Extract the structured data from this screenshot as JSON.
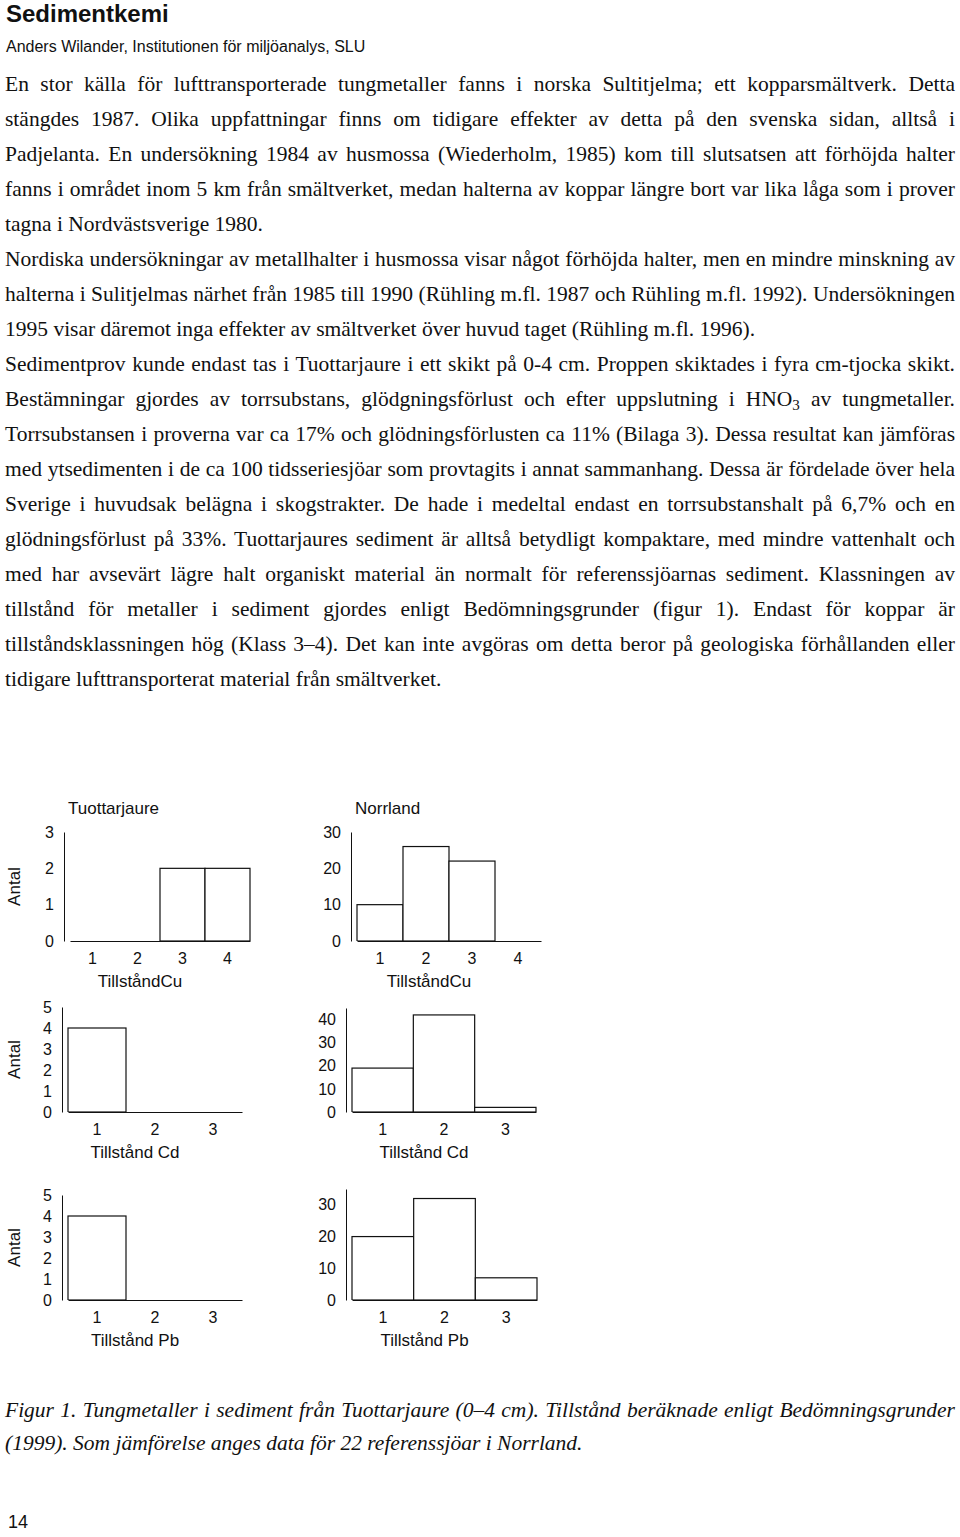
{
  "header": {
    "title": "Sedimentkemi",
    "author": "Anders Wilander, Institutionen för miljöanalys, SLU"
  },
  "paragraphs": [
    {
      "runs": [
        {
          "text": "En stor källa för lufttransporterade tungmetaller fanns i norska Sultitjelma; ett kopparsmältverk. Detta stängdes 1987. Olika uppfattningar finns om tidigare effekter av detta på den svenska sidan, alltså i Padjelanta. En undersökning 1984 av husmossa (Wiederholm, 1985) kom till slutsatsen att förhöjda halter fanns i området inom 5 km från smältverket, medan halterna av koppar längre bort var lika låga som i prover tagna i Nordvästsverige 1980."
        }
      ]
    },
    {
      "runs": [
        {
          "text": "Nordiska undersökningar av metallhalter i husmossa visar något förhöjda halter, men en mindre minskning av halterna i Sulitjelmas närhet från 1985 till 1990 (Rühling m.fl. 1987 och Rühling m.fl. 1992). Undersökningen 1995 visar däremot inga effekter av smältverket över huvud taget (Rühling m.fl. 1996)."
        }
      ]
    },
    {
      "runs": [
        {
          "text": "Sedimentprov kunde endast tas i Tuottarjaure i ett skikt på 0-4 cm. Proppen skiktades i fyra cm-tjocka skikt. Bestämningar gjordes av torrsubstans, glödgningsförlust och efter uppslutning i HNO"
        },
        {
          "text": "3",
          "subscript": true
        },
        {
          "text": " av tungmetaller. Torrsubstansen i proverna var ca 17% och glödningsförlusten ca 11% (Bilaga 3). Dessa resultat kan jämföras med ytsedimenten i de ca 100 tidsseriesjöar som provtagits i annat sammanhang. Dessa är fördelade över hela Sverige i huvudsak belägna i skogstrakter. De hade i medeltal endast en torrsubstanshalt på 6,7% och en glödningsförlust på 33%. Tuottarjaures sediment är alltså betydligt kompaktare, med mindre vattenhalt och med har avsevärt lägre halt organiskt material än normalt för referenssjöarnas sediment. Klassningen av tillstånd för metaller i sediment gjordes enligt Bedömningsgrunder (figur 1). Endast för koppar är tillståndsklassningen hög (Klass 3–4). Det kan inte avgöras om detta beror på geologiska förhållanden eller tidigare lufttransporterat material från smältverket."
        }
      ]
    }
  ],
  "chart_data": [
    {
      "type": "bar",
      "title": "Tuottarjaure",
      "x_label": "TillståndCu",
      "y_label": "Antal",
      "categories": [
        "1",
        "2",
        "3",
        "4"
      ],
      "values": [
        0,
        0,
        2,
        2
      ],
      "color": "#ffffff",
      "ylim": [
        0,
        3
      ],
      "yticks": [
        0,
        1,
        2,
        3
      ]
    },
    {
      "type": "bar",
      "title": "Norrland",
      "x_label": "TillståndCu",
      "categories": [
        "1",
        "2",
        "3",
        "4"
      ],
      "values": [
        10,
        26,
        22,
        0
      ],
      "color": "#ffffff",
      "ylim": [
        0,
        30
      ],
      "yticks": [
        0,
        10,
        20,
        30
      ]
    },
    {
      "type": "bar",
      "x_label": "Tillstånd Cd",
      "y_label": "Antal",
      "categories": [
        "1",
        "2",
        "3"
      ],
      "values": [
        4,
        0,
        0
      ],
      "color": "#ffffff",
      "ylim": [
        0,
        5
      ],
      "yticks": [
        0,
        1,
        2,
        3,
        4,
        5
      ]
    },
    {
      "type": "bar",
      "x_label": "Tillstånd Cd",
      "categories": [
        "1",
        "2",
        "3"
      ],
      "values": [
        19,
        42,
        2
      ],
      "color": "#ffffff",
      "ylim": [
        0,
        45
      ],
      "yticks": [
        0,
        10,
        20,
        30,
        40
      ]
    },
    {
      "type": "bar",
      "x_label": "Tillstånd Pb",
      "y_label": "Antal",
      "categories": [
        "1",
        "2",
        "3"
      ],
      "values": [
        4,
        0,
        0
      ],
      "color": "#ffffff",
      "ylim": [
        0,
        5
      ],
      "yticks": [
        0,
        1,
        2,
        3,
        4,
        5
      ]
    },
    {
      "type": "bar",
      "x_label": "Tillstånd Pb",
      "categories": [
        "1",
        "2",
        "3"
      ],
      "values": [
        20,
        32,
        7
      ],
      "color": "#ffffff",
      "ylim": [
        0,
        35
      ],
      "yticks": [
        0,
        10,
        20,
        30
      ]
    }
  ],
  "caption": "Figur 1. Tungmetaller i sediment från Tuottarjaure (0–4 cm). Tillstånd beräknade enligt Bedömningsgrunder (1999). Som jämförelse anges data för 22 referenssjöar i Norrland.",
  "page_number": "14"
}
